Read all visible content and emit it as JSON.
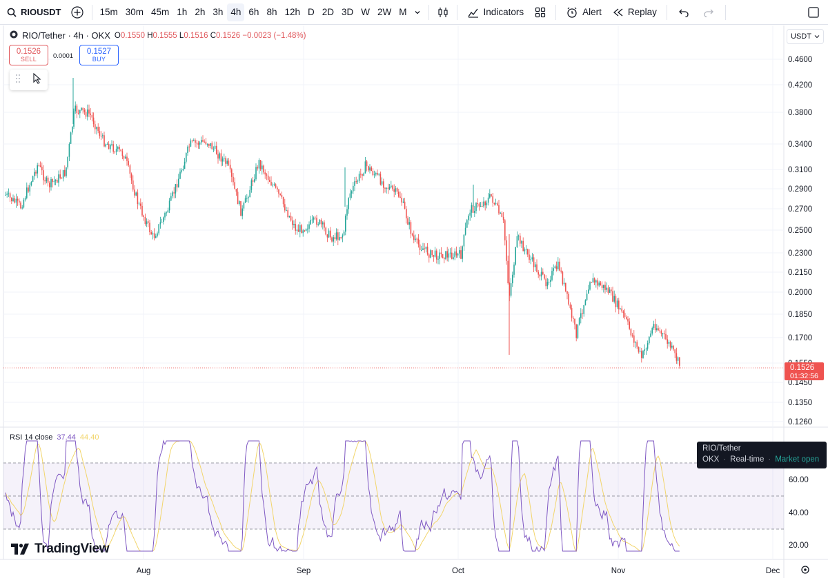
{
  "toolbar": {
    "symbol": "RIOUSDT",
    "intervals": [
      "15m",
      "30m",
      "45m",
      "1h",
      "2h",
      "3h",
      "4h",
      "6h",
      "8h",
      "12h",
      "D",
      "2D",
      "3D",
      "W",
      "2W",
      "M"
    ],
    "active_interval": "4h",
    "indicators_label": "Indicators",
    "alert_label": "Alert",
    "replay_label": "Replay"
  },
  "legend": {
    "title": "RIO/Tether · 4h · OKX",
    "o_label": "O",
    "o": "0.1550",
    "h_label": "H",
    "h": "0.1555",
    "l_label": "L",
    "l": "0.1516",
    "c_label": "C",
    "c": "0.1526",
    "change": "−0.0023 (−1.48%)"
  },
  "trade": {
    "sell_price": "0.1526",
    "sell_label": "SELL",
    "spread": "0.0001",
    "buy_price": "0.1527",
    "buy_label": "BUY"
  },
  "price_axis": {
    "currency": "USDT",
    "labels": [
      "0.4600",
      "0.4200",
      "0.3800",
      "0.3400",
      "0.3100",
      "0.2900",
      "0.2700",
      "0.2500",
      "0.2300",
      "0.2150",
      "0.2000",
      "0.1850",
      "0.1700",
      "0.1550",
      "0.1450",
      "0.1350",
      "0.1260"
    ],
    "current_price": "0.1526",
    "countdown": "01:32:56"
  },
  "rsi": {
    "label": "RSI 14 close",
    "value": "37.44",
    "ma_value": "44.40",
    "axis_labels": [
      "60.00",
      "40.00",
      "20.00"
    ]
  },
  "time_axis": [
    "Aug",
    "Sep",
    "Oct",
    "Nov",
    "Dec"
  ],
  "tooltip": {
    "title": "RIO/Tether",
    "exchange": "OKX",
    "mode": "Real-time",
    "status": "Market open"
  },
  "logo": "TradingView",
  "colors": {
    "up": "#26a69a",
    "down": "#ef5350",
    "rsi_line": "#7e57c2",
    "rsi_ma": "#f2d56b",
    "price_tag": "#ef5350"
  }
}
